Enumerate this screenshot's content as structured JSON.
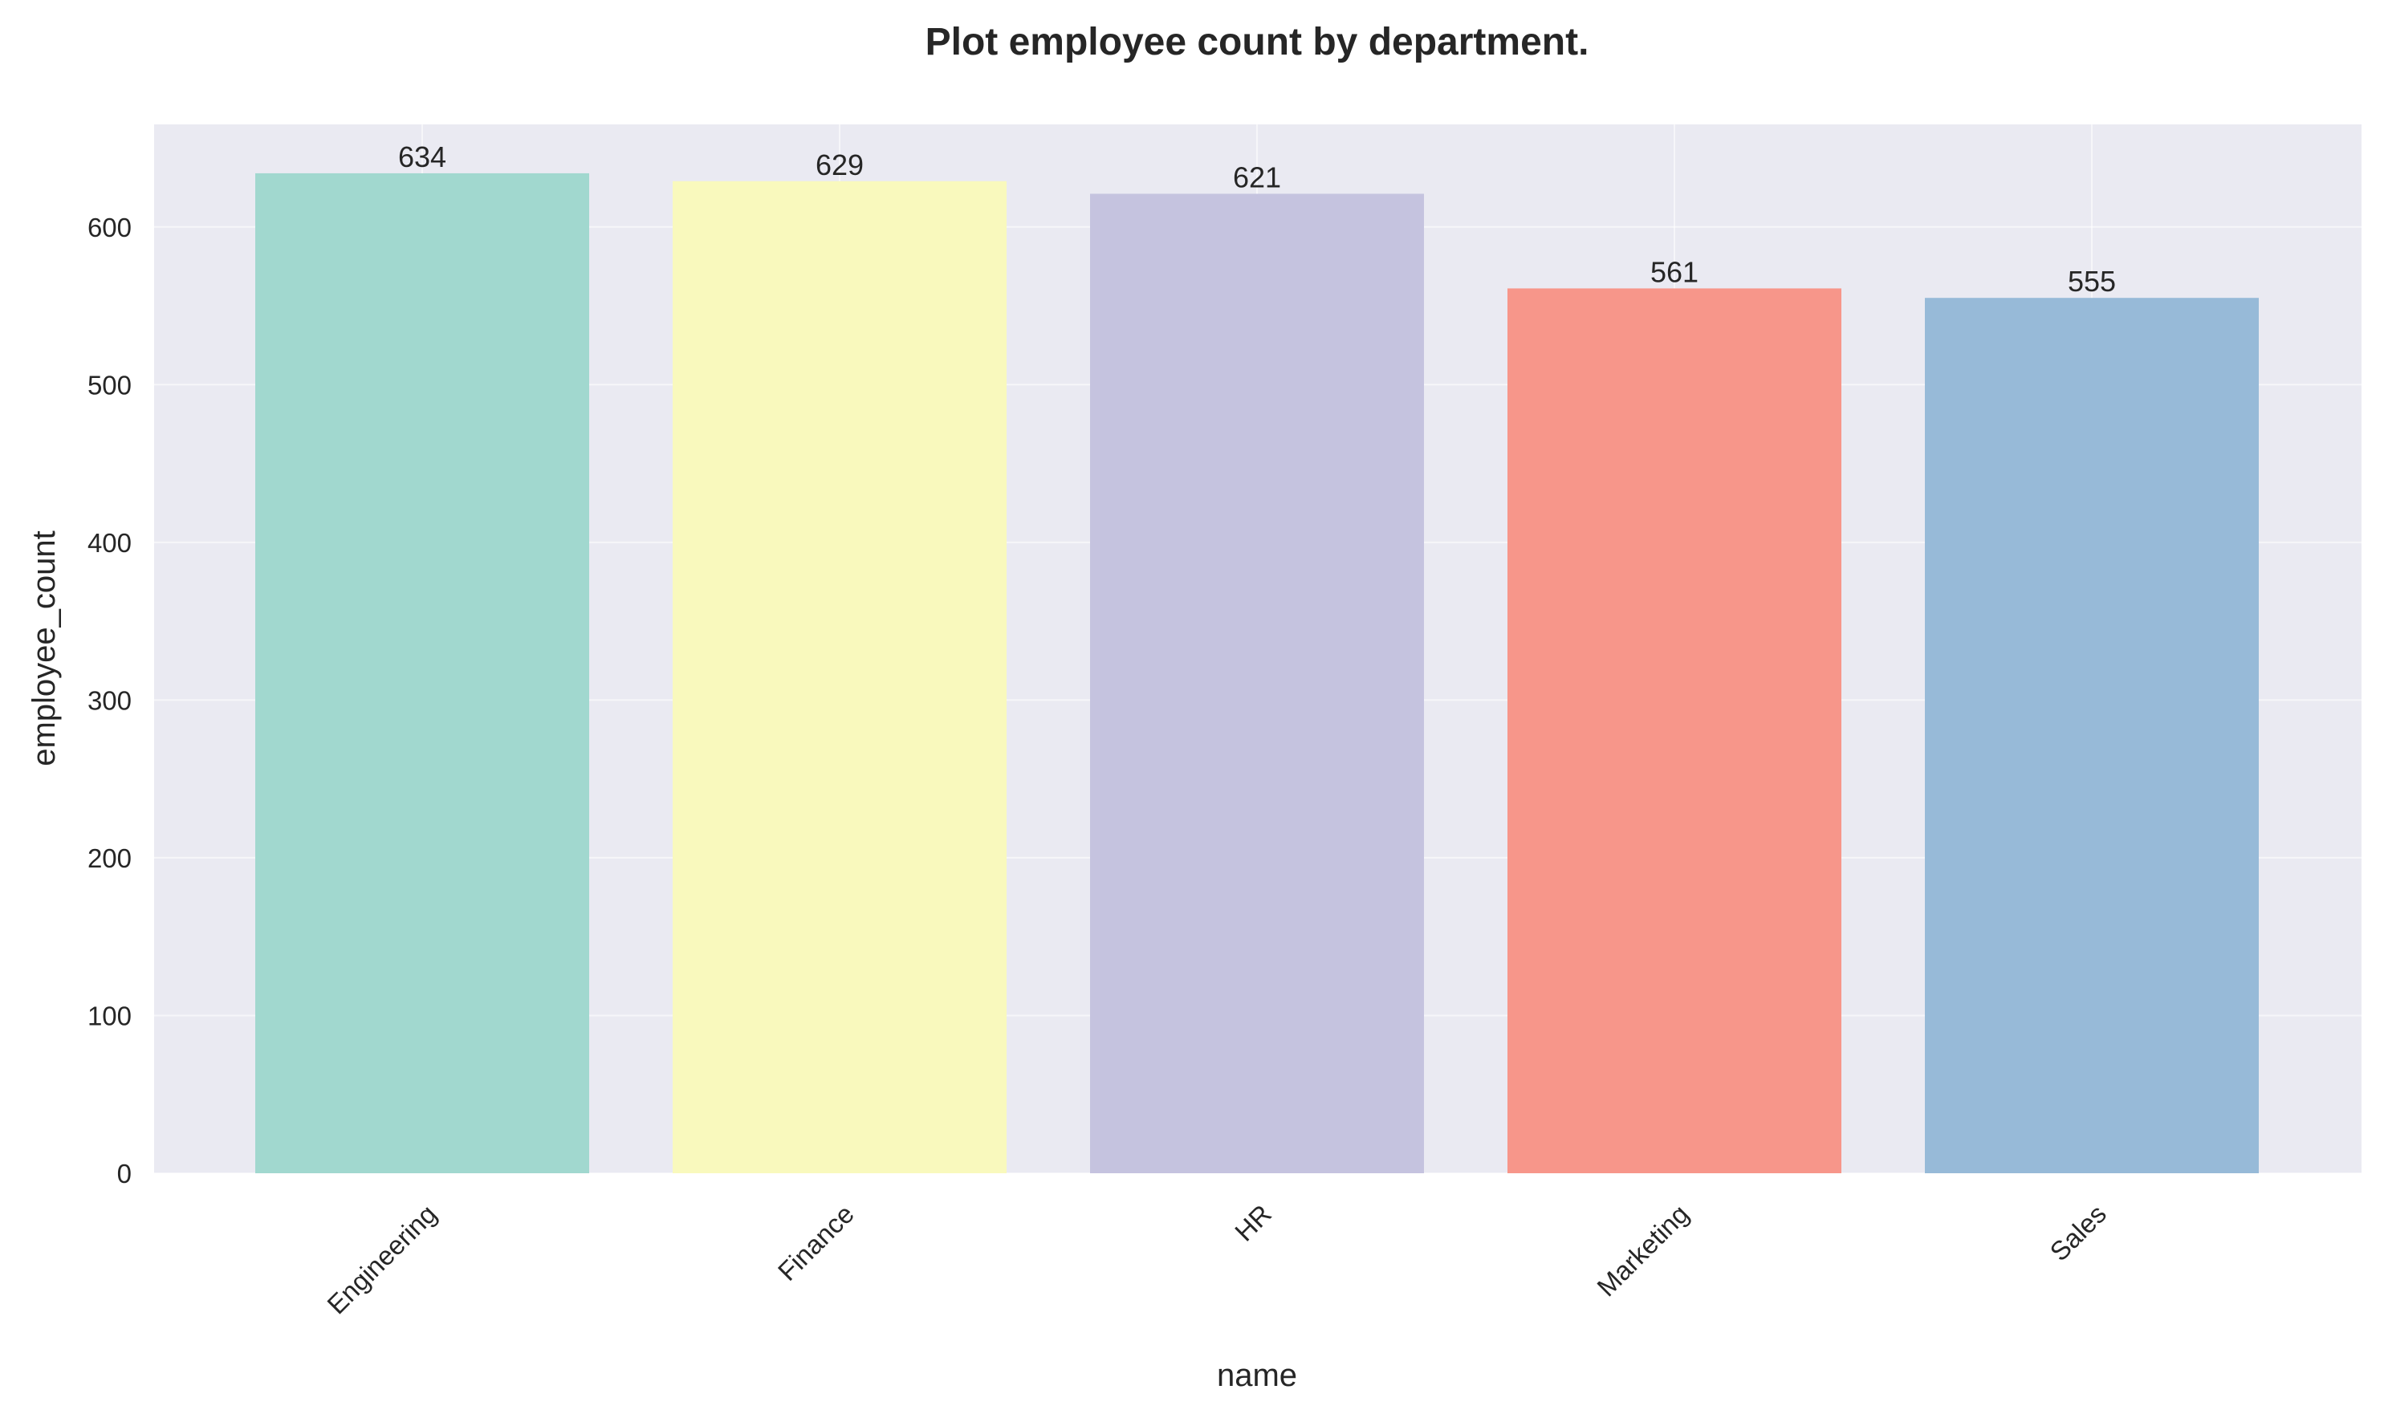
{
  "chart_data": {
    "type": "bar",
    "title": "Plot employee count by department.",
    "xlabel": "name",
    "ylabel": "employee_count",
    "categories": [
      "Engineering",
      "Finance",
      "HR",
      "Marketing",
      "Sales"
    ],
    "values": [
      634,
      629,
      621,
      561,
      555
    ],
    "colors": [
      "#a1d8cf",
      "#f9f9bd",
      "#c5c3df",
      "#f7968a",
      "#97bad8"
    ],
    "ylim": [
      0,
      665
    ],
    "yticks": [
      0,
      100,
      200,
      300,
      400,
      500,
      600
    ],
    "grid": true,
    "plot_background": "#eaeaf2",
    "legend": "none"
  }
}
